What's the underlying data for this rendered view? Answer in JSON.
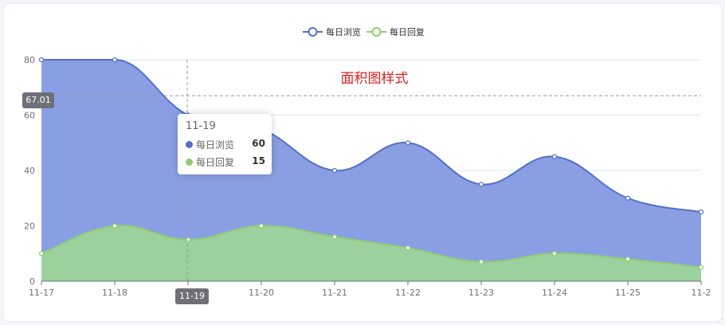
{
  "chart_data": {
    "type": "area",
    "title": "面积图样式",
    "categories": [
      "11-17",
      "11-18",
      "11-19",
      "11-20",
      "11-21",
      "11-22",
      "11-23",
      "11-24",
      "11-25",
      "11-2"
    ],
    "series": [
      {
        "name": "每日浏览",
        "values": [
          80,
          80,
          60,
          55,
          40,
          50,
          35,
          45,
          30,
          25
        ],
        "color": "#5470c6",
        "fill": "#8a9fe3"
      },
      {
        "name": "每日回复",
        "values": [
          10,
          20,
          15,
          20,
          16,
          12,
          7,
          10,
          8,
          5
        ],
        "color": "#91cc75",
        "fill": "#9bd19d"
      }
    ],
    "yticks": [
      0,
      20,
      40,
      60,
      80
    ],
    "ylim": [
      0,
      80
    ],
    "legend_position": "top-center",
    "grid": true
  },
  "tooltip": {
    "title": "11-19",
    "rows": [
      {
        "name": "每日浏览",
        "value": "60"
      },
      {
        "name": "每日回复",
        "value": "15"
      }
    ]
  },
  "axis_pointer": {
    "x_label": "11-19",
    "y_label": "67.01",
    "y_value": 67.01
  }
}
